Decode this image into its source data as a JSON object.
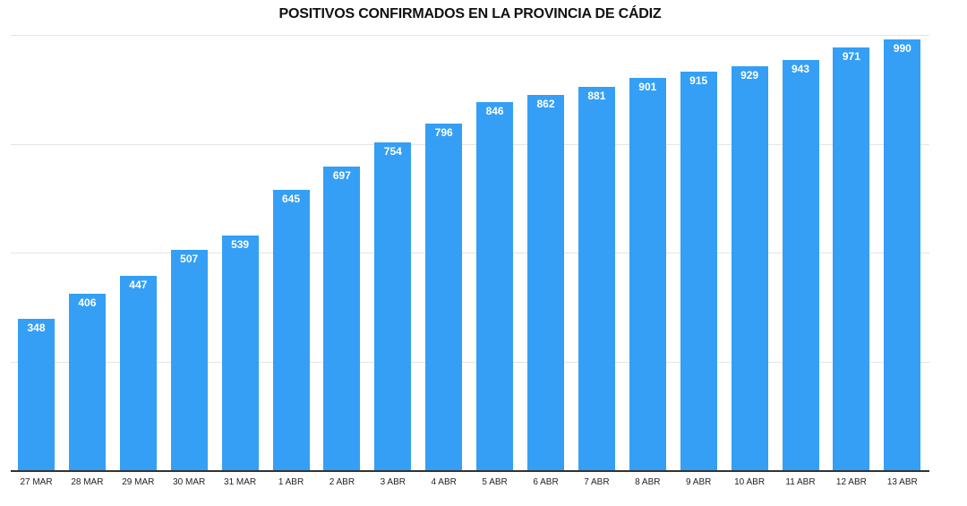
{
  "chart_data": {
    "type": "bar",
    "title": "POSITIVOS CONFIRMADOS EN LA PROVINCIA DE CÁDIZ",
    "xlabel": "",
    "ylabel": "",
    "ylim": [
      0,
      1000
    ],
    "grid": true,
    "gridlines": [
      250,
      500,
      750,
      1000
    ],
    "legend": null,
    "bar_color": "#349ff5",
    "categories": [
      "27 MAR",
      "28 MAR",
      "29 MAR",
      "30 MAR",
      "31 MAR",
      "1 ABR",
      "2 ABR",
      "3 ABR",
      "4 ABR",
      "5 ABR",
      "6 ABR",
      "7 ABR",
      "8 ABR",
      "9 ABR",
      "10 ABR",
      "11 ABR",
      "12 ABR",
      "13 ABR"
    ],
    "values": [
      348,
      406,
      447,
      507,
      539,
      645,
      697,
      754,
      796,
      846,
      862,
      881,
      901,
      915,
      929,
      943,
      971,
      990
    ]
  }
}
